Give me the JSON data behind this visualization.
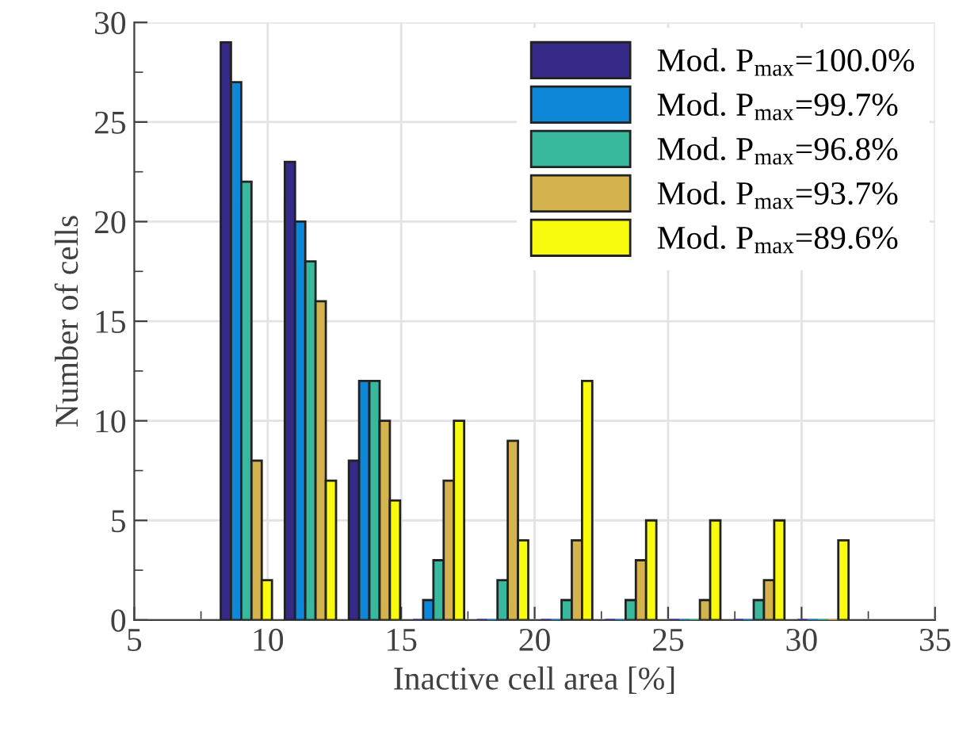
{
  "chart_data": {
    "type": "bar",
    "xlabel": "Inactive cell area [%]",
    "ylabel": "Number of cells",
    "x": [
      9.2,
      11.6,
      14.0,
      16.4,
      18.8,
      21.2,
      23.6,
      26.0,
      28.4,
      30.8
    ],
    "series": [
      {
        "name": "Mod. P$_{max}$=100.0%",
        "color": "#352a87",
        "values": [
          29,
          23,
          8,
          0,
          0,
          0,
          0,
          0,
          0,
          0
        ]
      },
      {
        "name": "Mod. P$_{max}$=99.7%",
        "color": "#0f87d8",
        "values": [
          27,
          20,
          12,
          1,
          0,
          0,
          0,
          0,
          0,
          0
        ]
      },
      {
        "name": "Mod. P$_{max}$=96.8%",
        "color": "#38b99e",
        "values": [
          22,
          18,
          12,
          3,
          2,
          1,
          1,
          0,
          1,
          0
        ]
      },
      {
        "name": "Mod. P$_{max}$=93.7%",
        "color": "#d4b34f",
        "values": [
          8,
          16,
          10,
          7,
          9,
          4,
          3,
          1,
          2,
          0
        ]
      },
      {
        "name": "Mod. P$_{max}$=89.6%",
        "color": "#f9fb0e",
        "values": [
          2,
          7,
          6,
          10,
          4,
          12,
          5,
          5,
          5,
          4
        ]
      }
    ],
    "xlim": [
      5,
      35
    ],
    "xticks": [
      5,
      {
        "value": 7.5,
        "label": null
      },
      10,
      {
        "value": 12.5,
        "label": null
      },
      15,
      {
        "value": 17.5,
        "label": null
      },
      20,
      {
        "value": 22.5,
        "label": null
      },
      25,
      {
        "value": 27.5,
        "label": null
      },
      30,
      {
        "value": 32.5,
        "label": null
      },
      35
    ],
    "ylim": [
      0,
      30
    ],
    "yticks": [
      0,
      {
        "value": 2.5,
        "label": null
      },
      5,
      {
        "value": 7.5,
        "label": null
      },
      10,
      {
        "value": 12.5,
        "label": null
      },
      15,
      {
        "value": 17.5,
        "label": null
      },
      20,
      {
        "value": 22.5,
        "label": null
      },
      25,
      {
        "value": 27.5,
        "label": null
      },
      30
    ],
    "grid": true,
    "legend": "top right"
  }
}
